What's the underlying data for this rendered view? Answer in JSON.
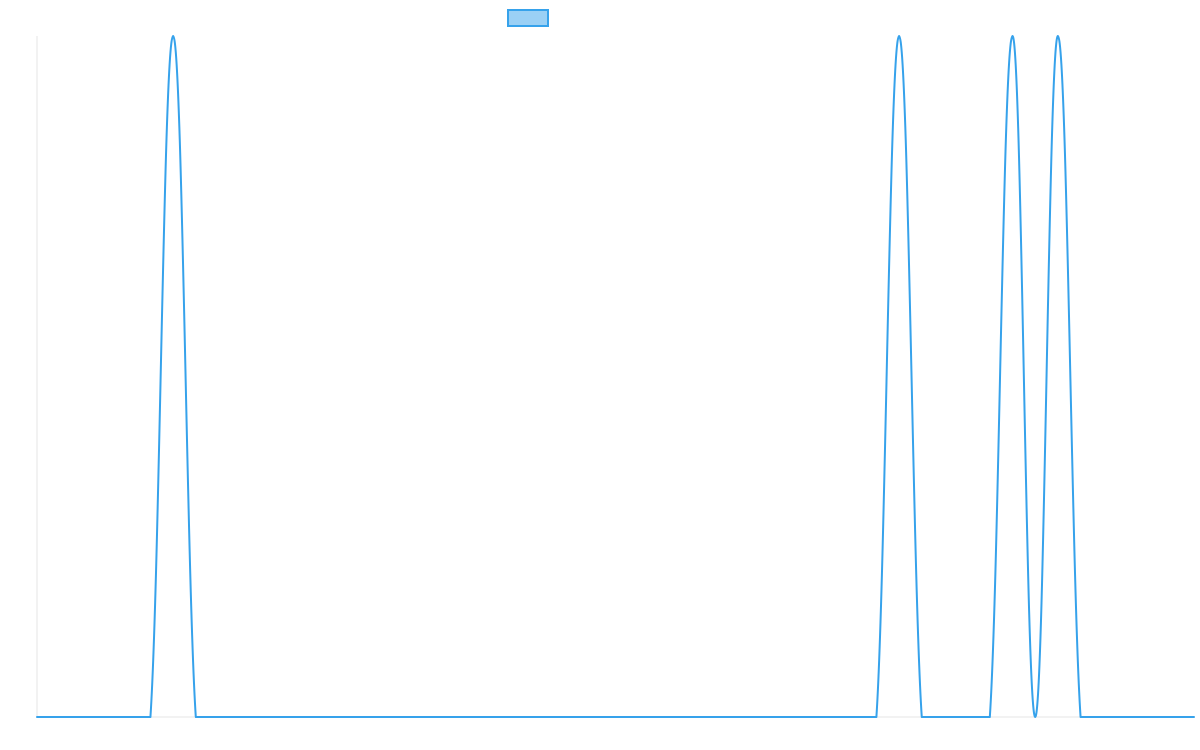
{
  "chart_data": {
    "type": "line",
    "title": "",
    "xlabel": "",
    "ylabel": "",
    "grid": false,
    "legend": "top-center",
    "x": [
      0,
      1,
      2,
      3,
      4,
      5,
      6,
      7,
      8,
      9,
      10,
      11,
      12,
      13,
      14,
      15,
      16,
      17,
      18,
      19,
      20,
      21,
      22,
      23,
      24,
      25,
      26,
      27,
      28,
      29,
      30,
      31,
      32,
      33,
      34,
      35,
      36,
      37,
      38,
      39,
      40,
      41,
      42,
      43,
      44,
      45,
      46,
      47,
      48,
      49,
      50,
      51
    ],
    "xlim": [
      0,
      51
    ],
    "ylim": [
      0,
      1
    ],
    "series": [
      {
        "name": "",
        "color": "#36A2EB",
        "fill_color": "#9AD0F5",
        "values": [
          0,
          0,
          0,
          0,
          0,
          0,
          1,
          0,
          0,
          0,
          0,
          0,
          0,
          0,
          0,
          0,
          0,
          0,
          0,
          0,
          0,
          0,
          0,
          0,
          0,
          0,
          0,
          0,
          0,
          0,
          0,
          0,
          0,
          0,
          0,
          0,
          0,
          0,
          1,
          0,
          0,
          0,
          0,
          1,
          0,
          1,
          0,
          0,
          0,
          0,
          0,
          0
        ]
      }
    ]
  }
}
